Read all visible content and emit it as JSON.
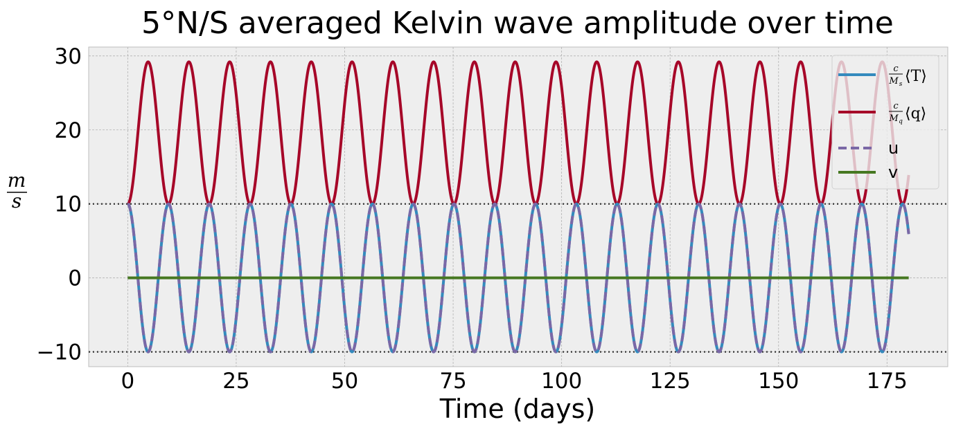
{
  "chart_data": {
    "type": "line",
    "title": "5°N/S averaged Kelvin wave amplitude over time",
    "xlabel": "Time (days)",
    "ylabel": {
      "num": "m",
      "den": "s"
    },
    "xlim": [
      -9,
      189
    ],
    "ylim": [
      -12,
      31.2
    ],
    "xticks": [
      0,
      25,
      50,
      75,
      100,
      125,
      150,
      175
    ],
    "yticks": [
      -10,
      0,
      10,
      20,
      30
    ],
    "ytick_labels": [
      "−10",
      "0",
      "10",
      "20",
      "30"
    ],
    "grid": true,
    "legend_position": "top-right",
    "reference_lines": [
      10,
      -10
    ],
    "period_days": 9.4,
    "x_range": [
      0,
      180
    ],
    "series": [
      {
        "name": "c/M_s ⟨T⟩",
        "color": "#348abd",
        "style": "solid",
        "mean": 0,
        "amplitude": 10,
        "phase": 0
      },
      {
        "name": "c/M_q ⟨q⟩",
        "color": "#a60628",
        "style": "solid",
        "mean": 19.6,
        "amplitude": -9.6,
        "phase": 0
      },
      {
        "name": "u",
        "color": "#7a68a6",
        "style": "dashed",
        "mean": 0,
        "amplitude": 10,
        "phase": 0
      },
      {
        "name": "v",
        "color": "#467821",
        "style": "solid",
        "mean": 0,
        "amplitude": 0,
        "phase": 0
      }
    ],
    "legend": {
      "entry0": {
        "frac_num": "c",
        "frac_den": "M",
        "frac_den_sub": "s",
        "body": "⟨T⟩"
      },
      "entry1": {
        "frac_num": "c",
        "frac_den": "M",
        "frac_den_sub": "q",
        "body": "⟨q⟩"
      },
      "entry2": "u",
      "entry3": "v"
    }
  }
}
